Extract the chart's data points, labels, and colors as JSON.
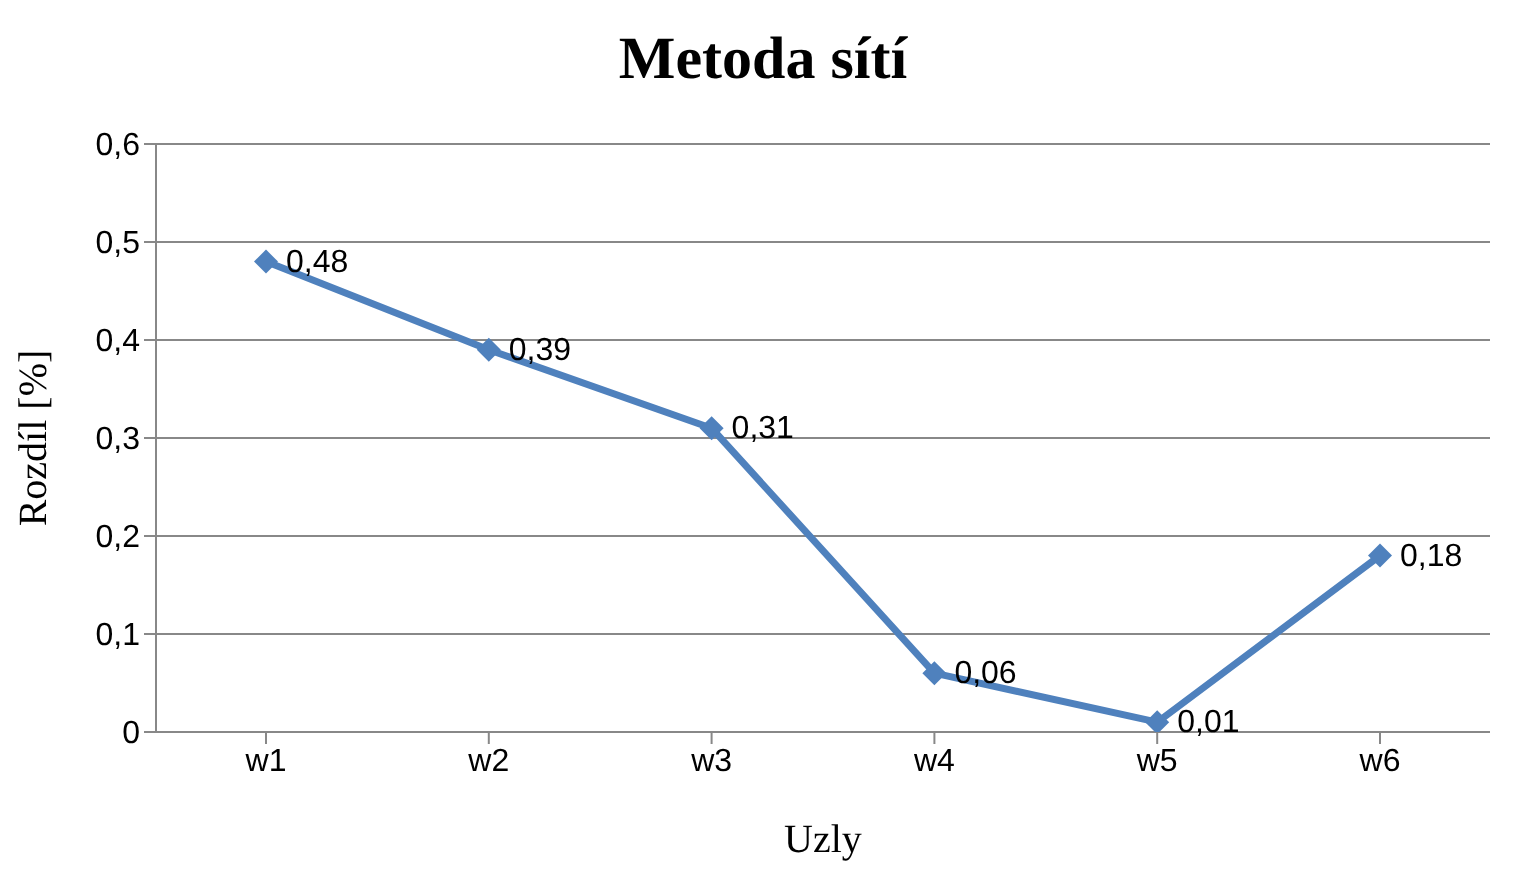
{
  "chart_data": {
    "type": "line",
    "title": "Metoda sítí",
    "xlabel": "Uzly",
    "ylabel": "Rozdíl [%]",
    "categories": [
      "w1",
      "w2",
      "w3",
      "w4",
      "w5",
      "w6"
    ],
    "series": [
      {
        "color": "#4f81bd",
        "values": [
          0.48,
          0.39,
          0.31,
          0.06,
          0.01,
          0.18
        ],
        "value_labels": [
          "0,48",
          "0,39",
          "0,31",
          "0,06",
          "0,01",
          "0,18"
        ]
      }
    ],
    "ylim": [
      0,
      0.6
    ],
    "yticks": [
      0,
      {
        "value": 0.1,
        "label": "0,1"
      },
      {
        "value": 0.2,
        "label": "0,2"
      },
      {
        "value": 0.3,
        "label": "0,3"
      },
      {
        "value": 0.4,
        "label": "0,4"
      },
      {
        "value": 0.5,
        "label": "0,5"
      },
      {
        "value": 0.6,
        "label": "0,6"
      }
    ],
    "grid": "y",
    "marker": "diamond",
    "line_style": "solid",
    "legend": false
  }
}
